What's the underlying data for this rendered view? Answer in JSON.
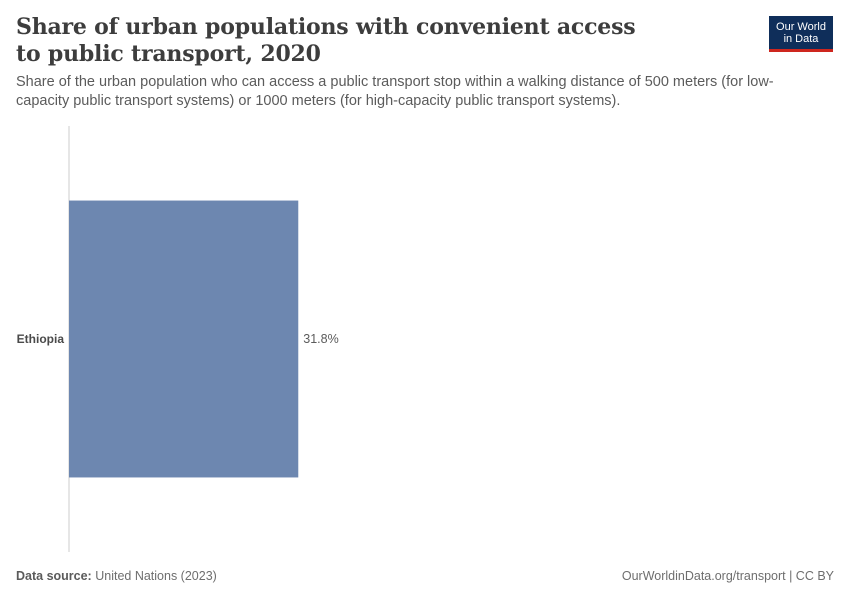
{
  "header": {
    "title": "Share of urban populations with convenient access to public transport, 2020",
    "subtitle": "Share of the urban population who can access a public transport stop within a walking distance of 500 meters (for low-capacity public transport systems) or 1000 meters (for high-capacity public transport systems).",
    "logo_line1": "Our World",
    "logo_line2": "in Data"
  },
  "chart_data": {
    "type": "bar",
    "orientation": "horizontal",
    "categories": [
      "Ethiopia"
    ],
    "values": [
      31.8
    ],
    "value_labels": [
      "31.8%"
    ],
    "unit": "%",
    "xlim": [
      0,
      100
    ],
    "grid": false,
    "bar_color": "#6d87b0"
  },
  "footer": {
    "source_label": "Data source:",
    "source_value": "United Nations (2023)",
    "url_license": "OurWorldinData.org/transport | CC BY"
  },
  "colors": {
    "title": "#3d3d3d",
    "text": "#5b5b5b",
    "logo_bg": "#0f2e5a",
    "logo_accent": "#ce261e",
    "axis": "#cccccc"
  }
}
